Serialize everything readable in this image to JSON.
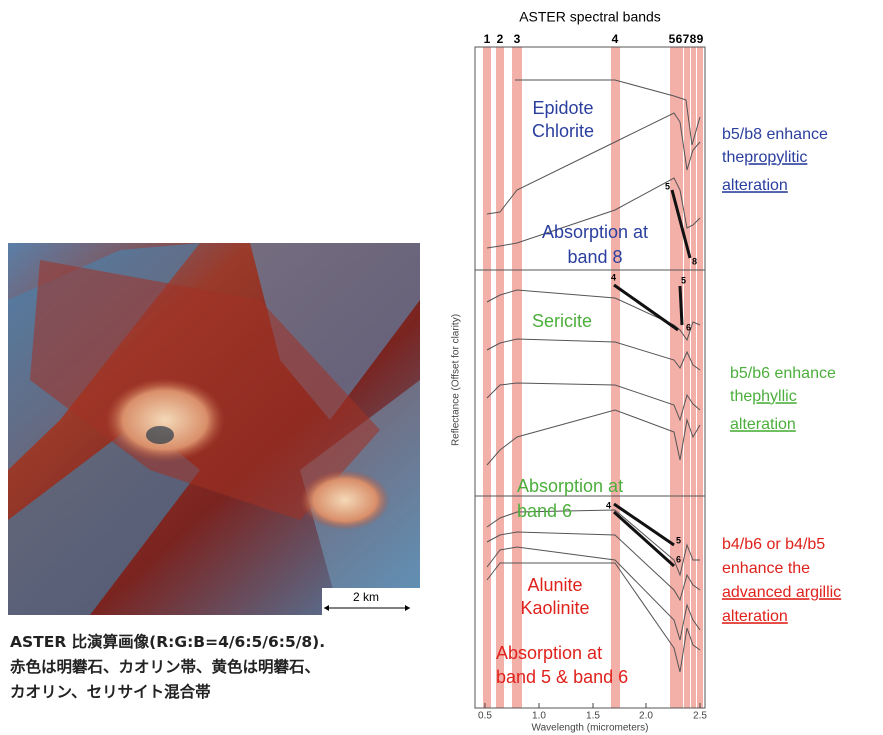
{
  "image": {
    "scale_label": "2 km"
  },
  "caption": {
    "lines": [
      "ASTER 比演算画像(R:G:B=4/6:5/6:5/8).",
      "赤色は明礬石、カオリン帯、黄色は明礬石、",
      "カオリン、セリサイト混合帯"
    ]
  },
  "plot": {
    "title": "ASTER spectral bands",
    "bands": [
      "1",
      "2",
      "3",
      "4",
      "5",
      "6",
      "7",
      "8",
      "9"
    ],
    "y_label": "Reflectance (Offset for clarity)",
    "x_label": "Wavelength (micrometers)",
    "x_ticks": [
      "0.5",
      "1.0",
      "1.5",
      "2.0",
      "2.5"
    ],
    "panels": [
      {
        "mineral_lines": [
          "Epidote",
          "Chlorite"
        ],
        "absorption_lines": [
          "Absorption at",
          "band 8"
        ],
        "curve_marks": [
          "5",
          "8"
        ],
        "note_lines": [
          "b5/b8 enhance",
          "the ",
          "propylitic ",
          "alteration"
        ]
      },
      {
        "mineral_lines": [
          "Sericite"
        ],
        "absorption_lines": [
          "Absorption at",
          "band 6"
        ],
        "curve_marks": [
          "4",
          "5",
          "6"
        ],
        "note_lines": [
          "b5/b6 enhance",
          "the ",
          "phyllic",
          "alteration"
        ]
      },
      {
        "mineral_lines": [
          "Alunite",
          "Kaolinite"
        ],
        "absorption_lines": [
          "Absorption at",
          "band 5 & band 6"
        ],
        "curve_marks": [
          "4",
          "5",
          "6"
        ],
        "note_lines": [
          "b4/b6 or b4/b5",
          "enhance the",
          "advanced argillic",
          "alteration"
        ]
      }
    ]
  }
}
